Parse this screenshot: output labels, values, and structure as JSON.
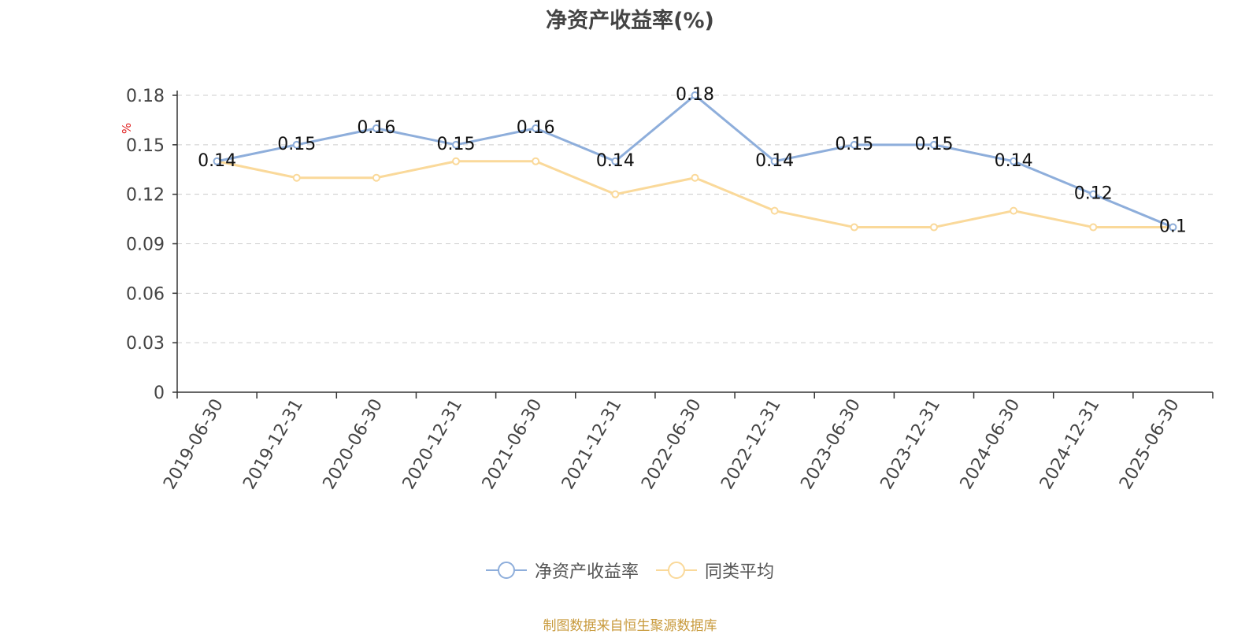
{
  "chart_data": {
    "type": "line",
    "title": "净资产收益率(%)",
    "ylabel": "%",
    "xlabel": "",
    "ylim": [
      0,
      0.18
    ],
    "yticks": [
      "0",
      "0.03",
      "0.06",
      "0.09",
      "0.12",
      "0.15",
      "0.18"
    ],
    "grid": true,
    "legend_position": "bottom",
    "categories": [
      "2019-06-30",
      "2019-12-31",
      "2020-06-30",
      "2020-12-31",
      "2021-06-30",
      "2021-12-31",
      "2022-06-30",
      "2022-12-31",
      "2023-06-30",
      "2023-12-31",
      "2024-06-30",
      "2024-12-31",
      "2025-06-30"
    ],
    "series": [
      {
        "name": "净资产收益率",
        "color": "#8eaedb",
        "values": [
          0.14,
          0.15,
          0.16,
          0.15,
          0.16,
          0.14,
          0.18,
          0.14,
          0.15,
          0.15,
          0.14,
          0.12,
          0.1
        ],
        "labels": [
          "0.14",
          "0.15",
          "0.16",
          "0.15",
          "0.16",
          "0.14",
          "0.18",
          "0.14",
          "0.15",
          "0.15",
          "0.14",
          "0.12",
          "0.1"
        ]
      },
      {
        "name": "同类平均",
        "color": "#fad99a",
        "values": [
          0.14,
          0.13,
          0.13,
          0.14,
          0.14,
          0.12,
          0.13,
          0.11,
          0.1,
          0.1,
          0.11,
          0.1,
          0.1
        ]
      }
    ]
  },
  "source_note": "制图数据来自恒生聚源数据库"
}
